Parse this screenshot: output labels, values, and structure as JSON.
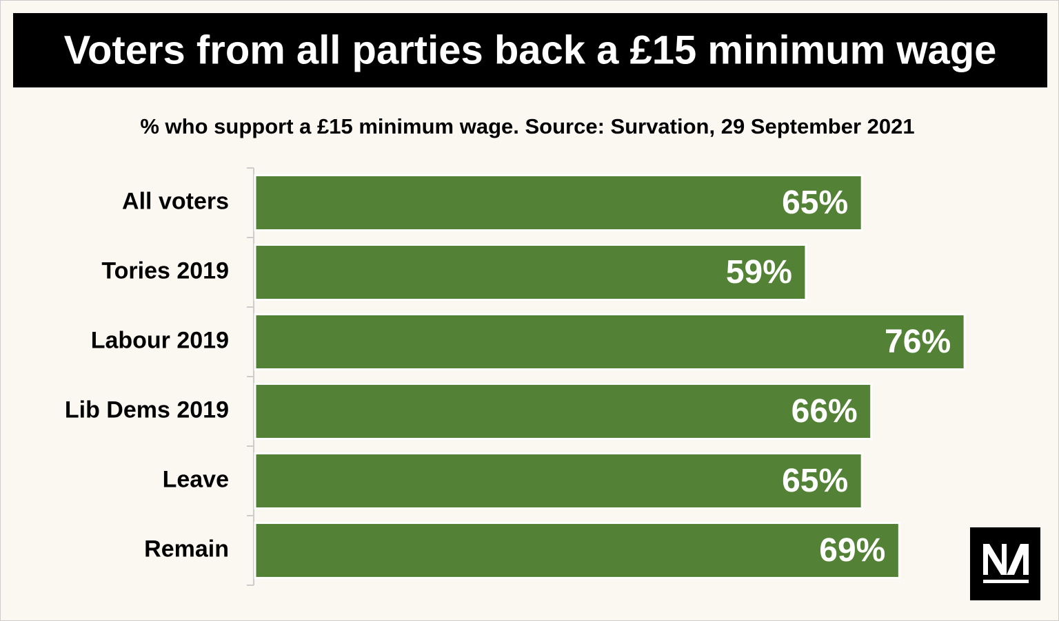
{
  "chart_data": {
    "type": "bar",
    "orientation": "horizontal",
    "title": "Voters from all parties back a £15 minimum wage",
    "subtitle": "% who support a £15 minimum wage. Source: Survation, 29 September 2021",
    "categories": [
      "All voters",
      "Tories 2019",
      "Labour 2019",
      "Lib Dems 2019",
      "Leave",
      "Remain"
    ],
    "values": [
      65,
      59,
      76,
      66,
      65,
      69
    ],
    "value_labels": [
      "65%",
      "59%",
      "76%",
      "66%",
      "65%",
      "69%"
    ],
    "color": "#538135",
    "xlim": [
      0,
      85
    ]
  }
}
